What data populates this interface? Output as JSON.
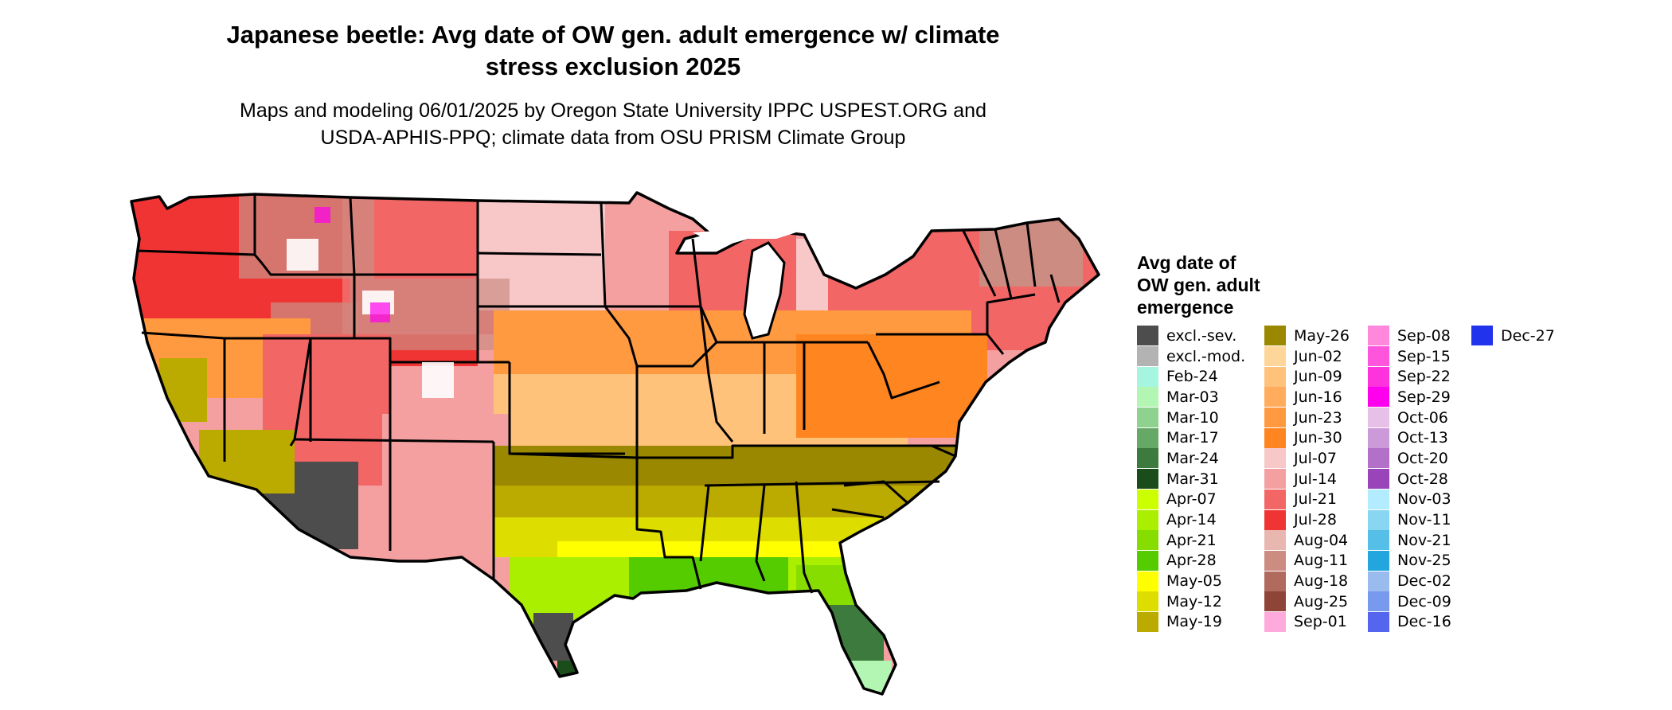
{
  "header": {
    "title_line1": "Japanese beetle: Avg date of OW gen. adult emergence w/ climate",
    "title_line2": "stress exclusion 2025",
    "subtitle_line1": "Maps and modeling 06/01/2025 by Oregon State University IPPC USPEST.ORG and",
    "subtitle_line2": "USDA-APHIS-PPQ; climate data from OSU PRISM Climate Group"
  },
  "legend": {
    "title_line1": "Avg date of",
    "title_line2": "OW gen. adult",
    "title_line3": "emergence",
    "items": [
      {
        "label": "excl.-sev.",
        "color": "#4d4d4d"
      },
      {
        "label": "excl.-mod.",
        "color": "#b3b3b3"
      },
      {
        "label": "Feb-24",
        "color": "#a6f5e0"
      },
      {
        "label": "Mar-03",
        "color": "#b3f5b3"
      },
      {
        "label": "Mar-10",
        "color": "#8fd18f"
      },
      {
        "label": "Mar-17",
        "color": "#66a866"
      },
      {
        "label": "Mar-24",
        "color": "#3d7a3d"
      },
      {
        "label": "Mar-31",
        "color": "#1a4d1a"
      },
      {
        "label": "Apr-07",
        "color": "#ccff00"
      },
      {
        "label": "Apr-14",
        "color": "#aaee00"
      },
      {
        "label": "Apr-21",
        "color": "#88dd00"
      },
      {
        "label": "Apr-28",
        "color": "#55cc00"
      },
      {
        "label": "May-05",
        "color": "#ffff00"
      },
      {
        "label": "May-12",
        "color": "#dddd00"
      },
      {
        "label": "May-19",
        "color": "#bbaa00"
      },
      {
        "label": "May-26",
        "color": "#998800"
      },
      {
        "label": "Jun-02",
        "color": "#ffd699"
      },
      {
        "label": "Jun-09",
        "color": "#ffc27a"
      },
      {
        "label": "Jun-16",
        "color": "#ffad5c"
      },
      {
        "label": "Jun-23",
        "color": "#ff9a40"
      },
      {
        "label": "Jun-30",
        "color": "#ff8520"
      },
      {
        "label": "Jul-07",
        "color": "#f8c8c8"
      },
      {
        "label": "Jul-14",
        "color": "#f5a0a0"
      },
      {
        "label": "Jul-21",
        "color": "#f26666"
      },
      {
        "label": "Jul-28",
        "color": "#f03333"
      },
      {
        "label": "Aug-04",
        "color": "#e8b8b0"
      },
      {
        "label": "Aug-11",
        "color": "#cc8c82"
      },
      {
        "label": "Aug-18",
        "color": "#b06a5e"
      },
      {
        "label": "Aug-25",
        "color": "#8f4438"
      },
      {
        "label": "Sep-01",
        "color": "#ffaadd"
      },
      {
        "label": "Sep-08",
        "color": "#ff88dd"
      },
      {
        "label": "Sep-15",
        "color": "#ff55dd"
      },
      {
        "label": "Sep-22",
        "color": "#ff33dd"
      },
      {
        "label": "Sep-29",
        "color": "#ff00ee"
      },
      {
        "label": "Oct-06",
        "color": "#e6c0e6"
      },
      {
        "label": "Oct-13",
        "color": "#cc99d9"
      },
      {
        "label": "Oct-20",
        "color": "#b370c9"
      },
      {
        "label": "Oct-28",
        "color": "#9944b8"
      },
      {
        "label": "Nov-03",
        "color": "#b3ecff"
      },
      {
        "label": "Nov-11",
        "color": "#88d6f2"
      },
      {
        "label": "Nov-21",
        "color": "#55bfe8"
      },
      {
        "label": "Nov-25",
        "color": "#22a6dd"
      },
      {
        "label": "Dec-02",
        "color": "#99bbee"
      },
      {
        "label": "Dec-09",
        "color": "#7799ee"
      },
      {
        "label": "Dec-16",
        "color": "#5566ee"
      },
      {
        "label": "Dec-27",
        "color": "#2233ee"
      }
    ]
  }
}
